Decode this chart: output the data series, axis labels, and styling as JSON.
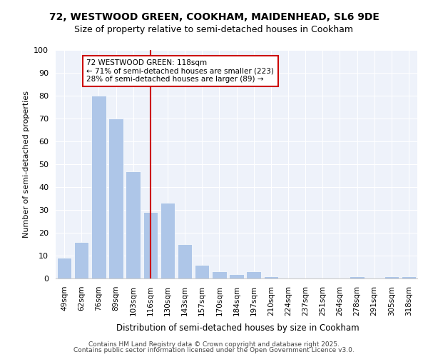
{
  "title1": "72, WESTWOOD GREEN, COOKHAM, MAIDENHEAD, SL6 9DE",
  "title2": "Size of property relative to semi-detached houses in Cookham",
  "xlabel": "Distribution of semi-detached houses by size in Cookham",
  "ylabel": "Number of semi-detached properties",
  "categories": [
    "49sqm",
    "62sqm",
    "76sqm",
    "89sqm",
    "103sqm",
    "116sqm",
    "130sqm",
    "143sqm",
    "157sqm",
    "170sqm",
    "184sqm",
    "197sqm",
    "210sqm",
    "224sqm",
    "237sqm",
    "251sqm",
    "264sqm",
    "278sqm",
    "291sqm",
    "305sqm",
    "318sqm"
  ],
  "values": [
    9,
    16,
    80,
    70,
    47,
    29,
    33,
    15,
    6,
    3,
    2,
    3,
    1,
    0,
    0,
    0,
    0,
    1,
    0,
    1,
    1
  ],
  "bar_color": "#aec6e8",
  "vline_color": "#cc0000",
  "annotation_box_edgecolor": "#cc0000",
  "property_bin_index": 5,
  "annotation_title": "72 WESTWOOD GREEN: 118sqm",
  "annotation_line1": "← 71% of semi-detached houses are smaller (223)",
  "annotation_line2": "28% of semi-detached houses are larger (89) →",
  "ylim": [
    0,
    100
  ],
  "background_color": "#eef2fa",
  "footer1": "Contains HM Land Registry data © Crown copyright and database right 2025.",
  "footer2": "Contains public sector information licensed under the Open Government Licence v3.0."
}
